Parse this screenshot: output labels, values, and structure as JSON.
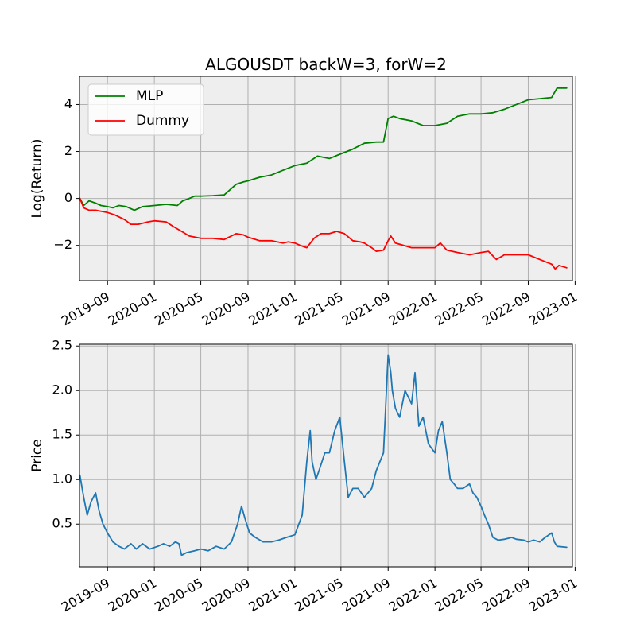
{
  "chart_data": [
    {
      "type": "line",
      "title": "ALGOUSDT backW=3, forW=2",
      "xlabel": "",
      "ylabel": "Log(Return)",
      "x_type": "date",
      "xlim": [
        "2019-06-20",
        "2022-12-25"
      ],
      "ylim": [
        -3.5,
        5.2
      ],
      "xticks": [
        "2019-09",
        "2020-01",
        "2020-05",
        "2020-09",
        "2021-01",
        "2021-05",
        "2021-09",
        "2022-01",
        "2022-05",
        "2022-09",
        "2023-01"
      ],
      "yticks": [
        -2,
        0,
        2,
        4
      ],
      "ytick_labels": [
        "−2",
        "0",
        "2",
        "4"
      ],
      "grid": true,
      "background": "#eeeeee",
      "legend": "top-left",
      "series": [
        {
          "name": "MLP",
          "color": "#008000",
          "x": [
            "2019-06-21",
            "2019-07-01",
            "2019-07-15",
            "2019-08-01",
            "2019-08-15",
            "2019-09-01",
            "2019-09-15",
            "2019-10-01",
            "2019-10-20",
            "2019-11-10",
            "2019-12-01",
            "2020-01-01",
            "2020-02-01",
            "2020-03-01",
            "2020-03-15",
            "2020-04-01",
            "2020-04-15",
            "2020-05-01",
            "2020-06-01",
            "2020-07-01",
            "2020-08-01",
            "2020-08-20",
            "2020-09-01",
            "2020-10-01",
            "2020-11-01",
            "2020-12-01",
            "2021-01-01",
            "2021-02-01",
            "2021-03-01",
            "2021-04-01",
            "2021-05-01",
            "2021-06-01",
            "2021-07-01",
            "2021-08-01",
            "2021-08-20",
            "2021-09-01",
            "2021-09-15",
            "2021-10-01",
            "2021-11-01",
            "2021-12-01",
            "2022-01-01",
            "2022-02-01",
            "2022-03-01",
            "2022-04-01",
            "2022-05-01",
            "2022-06-01",
            "2022-07-01",
            "2022-08-01",
            "2022-09-01",
            "2022-10-01",
            "2022-11-01",
            "2022-11-15",
            "2022-12-10"
          ],
          "values": [
            0.0,
            -0.3,
            -0.1,
            -0.2,
            -0.3,
            -0.35,
            -0.4,
            -0.3,
            -0.35,
            -0.5,
            -0.35,
            -0.3,
            -0.25,
            -0.3,
            -0.1,
            0.0,
            0.1,
            0.1,
            0.12,
            0.15,
            0.6,
            0.7,
            0.75,
            0.9,
            1.0,
            1.2,
            1.4,
            1.5,
            1.8,
            1.7,
            1.9,
            2.1,
            2.35,
            2.4,
            2.4,
            3.4,
            3.5,
            3.4,
            3.3,
            3.1,
            3.1,
            3.2,
            3.5,
            3.6,
            3.6,
            3.65,
            3.8,
            4.0,
            4.2,
            4.25,
            4.3,
            4.7,
            4.7
          ]
        },
        {
          "name": "Dummy",
          "color": "#ff0000",
          "x": [
            "2019-06-21",
            "2019-07-01",
            "2019-07-15",
            "2019-08-01",
            "2019-09-01",
            "2019-09-20",
            "2019-10-15",
            "2019-11-01",
            "2019-11-20",
            "2019-12-15",
            "2020-01-01",
            "2020-02-01",
            "2020-02-20",
            "2020-03-12",
            "2020-04-01",
            "2020-05-01",
            "2020-06-01",
            "2020-07-01",
            "2020-08-01",
            "2020-08-20",
            "2020-09-01",
            "2020-10-01",
            "2020-11-01",
            "2020-12-01",
            "2020-12-15",
            "2021-01-01",
            "2021-01-15",
            "2021-02-01",
            "2021-02-20",
            "2021-03-10",
            "2021-04-01",
            "2021-04-20",
            "2021-05-10",
            "2021-06-01",
            "2021-06-20",
            "2021-07-01",
            "2021-07-20",
            "2021-08-01",
            "2021-08-20",
            "2021-09-01",
            "2021-09-08",
            "2021-09-20",
            "2021-10-01",
            "2021-11-01",
            "2021-12-01",
            "2022-01-01",
            "2022-01-15",
            "2022-02-01",
            "2022-03-01",
            "2022-04-01",
            "2022-05-01",
            "2022-05-20",
            "2022-06-10",
            "2022-07-01",
            "2022-08-01",
            "2022-09-01",
            "2022-10-01",
            "2022-11-01",
            "2022-11-10",
            "2022-11-20",
            "2022-12-10"
          ],
          "values": [
            0.0,
            -0.4,
            -0.5,
            -0.5,
            -0.6,
            -0.7,
            -0.9,
            -1.1,
            -1.1,
            -1.0,
            -0.95,
            -1.0,
            -1.2,
            -1.4,
            -1.6,
            -1.7,
            -1.7,
            -1.75,
            -1.5,
            -1.55,
            -1.65,
            -1.8,
            -1.8,
            -1.9,
            -1.85,
            -1.9,
            -2.0,
            -2.1,
            -1.7,
            -1.5,
            -1.5,
            -1.4,
            -1.5,
            -1.8,
            -1.85,
            -1.9,
            -2.1,
            -2.25,
            -2.2,
            -1.8,
            -1.6,
            -1.9,
            -1.95,
            -2.1,
            -2.1,
            -2.1,
            -1.9,
            -2.2,
            -2.3,
            -2.4,
            -2.3,
            -2.25,
            -2.6,
            -2.4,
            -2.4,
            -2.4,
            -2.6,
            -2.8,
            -3.0,
            -2.85,
            -2.95
          ]
        }
      ]
    },
    {
      "type": "line",
      "title": "",
      "xlabel": "",
      "ylabel": "Price",
      "x_type": "date",
      "xlim": [
        "2019-06-20",
        "2022-12-25"
      ],
      "ylim": [
        0.02,
        2.52
      ],
      "xticks": [
        "2019-09",
        "2020-01",
        "2020-05",
        "2020-09",
        "2021-01",
        "2021-05",
        "2021-09",
        "2022-01",
        "2022-05",
        "2022-09",
        "2023-01"
      ],
      "yticks": [
        0.5,
        1.0,
        1.5,
        2.0,
        2.5
      ],
      "ytick_labels": [
        "0.5",
        "1.0",
        "1.5",
        "2.0",
        "2.5"
      ],
      "grid": true,
      "background": "#eeeeee",
      "series": [
        {
          "color": "#1f77b4",
          "x": [
            "2019-06-21",
            "2019-06-25",
            "2019-07-01",
            "2019-07-10",
            "2019-07-20",
            "2019-08-01",
            "2019-08-10",
            "2019-08-20",
            "2019-09-01",
            "2019-09-15",
            "2019-10-01",
            "2019-10-15",
            "2019-11-01",
            "2019-11-15",
            "2019-12-01",
            "2019-12-20",
            "2020-01-10",
            "2020-01-25",
            "2020-02-10",
            "2020-02-25",
            "2020-03-05",
            "2020-03-12",
            "2020-03-25",
            "2020-04-15",
            "2020-05-01",
            "2020-05-20",
            "2020-06-10",
            "2020-07-01",
            "2020-07-20",
            "2020-08-05",
            "2020-08-15",
            "2020-08-25",
            "2020-09-05",
            "2020-09-20",
            "2020-10-10",
            "2020-11-01",
            "2020-11-20",
            "2020-12-10",
            "2021-01-01",
            "2021-01-20",
            "2021-02-01",
            "2021-02-10",
            "2021-02-15",
            "2021-02-25",
            "2021-03-05",
            "2021-03-20",
            "2021-04-01",
            "2021-04-15",
            "2021-04-28",
            "2021-05-10",
            "2021-05-20",
            "2021-06-01",
            "2021-06-15",
            "2021-07-01",
            "2021-07-20",
            "2021-08-01",
            "2021-08-20",
            "2021-09-01",
            "2021-09-08",
            "2021-09-12",
            "2021-09-20",
            "2021-10-01",
            "2021-10-15",
            "2021-11-01",
            "2021-11-10",
            "2021-11-20",
            "2021-12-01",
            "2021-12-15",
            "2022-01-01",
            "2022-01-10",
            "2022-01-20",
            "2022-02-01",
            "2022-02-10",
            "2022-02-20",
            "2022-03-01",
            "2022-03-15",
            "2022-04-01",
            "2022-04-10",
            "2022-04-20",
            "2022-05-01",
            "2022-05-10",
            "2022-05-20",
            "2022-06-01",
            "2022-06-15",
            "2022-07-01",
            "2022-07-20",
            "2022-08-01",
            "2022-08-20",
            "2022-09-01",
            "2022-09-15",
            "2022-10-01",
            "2022-10-15",
            "2022-11-01",
            "2022-11-08",
            "2022-11-15",
            "2022-12-10"
          ],
          "values": [
            1.05,
            0.95,
            0.8,
            0.6,
            0.75,
            0.85,
            0.65,
            0.5,
            0.4,
            0.3,
            0.25,
            0.22,
            0.28,
            0.22,
            0.28,
            0.22,
            0.25,
            0.28,
            0.25,
            0.3,
            0.28,
            0.15,
            0.18,
            0.2,
            0.22,
            0.2,
            0.25,
            0.22,
            0.3,
            0.5,
            0.7,
            0.55,
            0.4,
            0.35,
            0.3,
            0.3,
            0.32,
            0.35,
            0.38,
            0.6,
            1.2,
            1.55,
            1.2,
            1.0,
            1.1,
            1.3,
            1.3,
            1.55,
            1.7,
            1.2,
            0.8,
            0.9,
            0.9,
            0.8,
            0.9,
            1.1,
            1.3,
            2.4,
            2.2,
            2.0,
            1.8,
            1.7,
            2.0,
            1.85,
            2.2,
            1.6,
            1.7,
            1.4,
            1.3,
            1.55,
            1.65,
            1.3,
            1.0,
            0.95,
            0.9,
            0.9,
            0.95,
            0.85,
            0.8,
            0.7,
            0.6,
            0.5,
            0.35,
            0.32,
            0.33,
            0.35,
            0.33,
            0.32,
            0.3,
            0.32,
            0.3,
            0.35,
            0.4,
            0.3,
            0.25,
            0.24
          ]
        }
      ]
    }
  ]
}
